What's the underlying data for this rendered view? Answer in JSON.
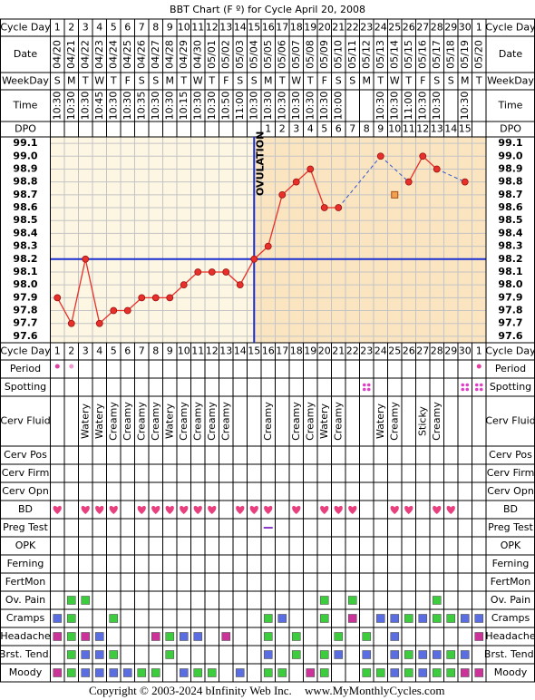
{
  "title": "BBT Chart (F º) for Cycle April 20, 2008",
  "labels": {
    "cycle_day": "Cycle Day",
    "date": "Date",
    "weekday": "WeekDay",
    "time": "Time",
    "dpo": "DPO"
  },
  "dates": [
    "04/20",
    "04/21",
    "04/22",
    "04/23",
    "04/24",
    "04/25",
    "04/26",
    "04/27",
    "04/28",
    "04/29",
    "04/30",
    "05/01",
    "05/02",
    "05/03",
    "05/04",
    "05/05",
    "05/06",
    "05/07",
    "05/08",
    "05/09",
    "05/10",
    "05/11",
    "05/12",
    "05/13",
    "05/14",
    "05/15",
    "05/16",
    "05/17",
    "05/18",
    "05/19",
    "05/20"
  ],
  "weekdays": [
    "S",
    "M",
    "T",
    "W",
    "T",
    "F",
    "S",
    "S",
    "M",
    "T",
    "W",
    "T",
    "F",
    "S",
    "S",
    "M",
    "T",
    "W",
    "T",
    "F",
    "S",
    "S",
    "M",
    "T",
    "W",
    "T",
    "F",
    "S",
    "S",
    "M",
    "T"
  ],
  "times": [
    "10:30",
    "10:30",
    "10:30",
    "10:45",
    "10:30",
    "10:30",
    "10:35",
    "10:30",
    "10:30",
    "10:15",
    "10:30",
    "10:30",
    "10:50",
    "11:00",
    "10:30",
    "10:30",
    "10:30",
    "10:30",
    "10:30",
    "10:30",
    "10:00",
    null,
    null,
    "10:30",
    "10:30",
    "11:00",
    "10:30",
    "10:30",
    null,
    "10:30",
    null
  ],
  "dpo": [
    null,
    null,
    null,
    null,
    null,
    null,
    null,
    null,
    null,
    null,
    null,
    null,
    null,
    null,
    null,
    1,
    2,
    3,
    4,
    5,
    6,
    7,
    8,
    9,
    10,
    11,
    12,
    13,
    14,
    15,
    null
  ],
  "chart_data": {
    "type": "line",
    "categories": [
      1,
      2,
      3,
      4,
      5,
      6,
      7,
      8,
      9,
      10,
      11,
      12,
      13,
      14,
      15,
      16,
      17,
      18,
      19,
      20,
      21,
      22,
      23,
      24,
      25,
      26,
      27,
      28,
      29,
      30,
      1
    ],
    "values": [
      97.9,
      97.7,
      98.2,
      97.7,
      97.8,
      97.8,
      97.9,
      97.9,
      97.9,
      98.0,
      98.1,
      98.1,
      98.1,
      98.0,
      98.2,
      98.3,
      98.7,
      98.8,
      98.9,
      98.6,
      98.6,
      null,
      null,
      99.0,
      null,
      98.8,
      99.0,
      98.9,
      null,
      98.8,
      null
    ],
    "color": "#e8302a",
    "gap_color": "#3355cc",
    "discarded": [
      null,
      null,
      null,
      null,
      null,
      null,
      null,
      null,
      null,
      null,
      null,
      null,
      null,
      null,
      null,
      null,
      null,
      null,
      null,
      null,
      null,
      null,
      null,
      null,
      98.7,
      null,
      null,
      null,
      null,
      null,
      null
    ],
    "discarded_color": "#f4a050",
    "ylim": [
      97.55,
      99.15
    ],
    "yticks": [
      97.6,
      97.7,
      97.8,
      97.9,
      {
        "value": 98,
        "label": "98.0"
      },
      98.1,
      98.2,
      98.3,
      98.4,
      98.5,
      98.6,
      98.7,
      98.8,
      98.9,
      {
        "value": 99,
        "label": "99.0"
      },
      99.1
    ],
    "grid": true,
    "coverline": 98.2,
    "coverline_color": "#1a2fd0",
    "ovulation_day": 15,
    "ovulation_label": "OVULATION",
    "pre_color": "#fdf6e3",
    "post_color": "#fae5c0"
  },
  "records": [
    {
      "label": "Period",
      "shape": "dot",
      "marks": [
        "#e23fa0",
        "#f09ad0",
        null,
        null,
        null,
        null,
        null,
        null,
        null,
        null,
        null,
        null,
        null,
        null,
        null,
        null,
        null,
        null,
        null,
        null,
        null,
        null,
        null,
        null,
        null,
        null,
        null,
        null,
        null,
        null,
        "#e23fa0"
      ]
    },
    {
      "label": "Spotting",
      "shape": "dots",
      "marks": [
        null,
        null,
        null,
        null,
        null,
        null,
        null,
        null,
        null,
        null,
        null,
        null,
        null,
        null,
        null,
        null,
        null,
        null,
        null,
        null,
        null,
        null,
        "#e040c8",
        null,
        null,
        null,
        null,
        null,
        null,
        "#e040c8",
        "#e040c8"
      ]
    },
    {
      "label": "Cerv Fluid",
      "entries": [
        null,
        null,
        "Watery",
        "Watery",
        "Creamy",
        "Creamy",
        "Creamy",
        "Creamy",
        "Watery",
        "Creamy",
        "Creamy",
        "Creamy",
        "Creamy",
        null,
        null,
        "Creamy",
        null,
        "Creamy",
        "Creamy",
        "Watery",
        "Creamy",
        null,
        null,
        "Watery",
        "Creamy",
        null,
        "Sticky",
        "Creamy",
        null,
        null,
        null
      ]
    },
    {
      "label": "Cerv Pos"
    },
    {
      "label": "Cerv Firm"
    },
    {
      "label": "Cerv Opn"
    },
    {
      "label": "BD",
      "shape": "heart",
      "marks": [
        "#e8407f",
        null,
        "#e8407f",
        "#e8407f",
        "#e8407f",
        null,
        "#e8407f",
        "#e8407f",
        "#e8407f",
        "#e8407f",
        "#e8407f",
        "#e8407f",
        null,
        "#e8407f",
        "#e8407f",
        "#e8407f",
        null,
        "#e8407f",
        null,
        "#e8407f",
        "#e8407f",
        "#e8407f",
        null,
        null,
        "#e8407f",
        "#e8407f",
        null,
        "#e8407f",
        "#e8407f",
        null,
        null
      ]
    },
    {
      "label": "Preg Test",
      "shape": "dash",
      "marks": [
        null,
        null,
        null,
        null,
        null,
        null,
        null,
        null,
        null,
        null,
        null,
        null,
        null,
        null,
        null,
        "#8a3cc8",
        null,
        null,
        null,
        null,
        null,
        null,
        null,
        null,
        null,
        null,
        null,
        null,
        null,
        null,
        null
      ]
    },
    {
      "label": "OPK"
    },
    {
      "label": "Ferning"
    },
    {
      "label": "FertMon"
    },
    {
      "label": "Ov. Pain",
      "shape": "square",
      "marks": [
        null,
        "#3dcc3d",
        "#3dcc3d",
        null,
        null,
        null,
        null,
        null,
        null,
        null,
        null,
        null,
        null,
        null,
        null,
        null,
        null,
        null,
        null,
        "#3dcc3d",
        null,
        "#3dcc3d",
        null,
        null,
        null,
        null,
        null,
        "#3dcc3d",
        null,
        null,
        null
      ]
    },
    {
      "label": "Cramps",
      "shape": "square",
      "marks": [
        "#5b6ee1",
        "#3dcc3d",
        null,
        null,
        "#3dcc3d",
        null,
        null,
        null,
        null,
        null,
        null,
        null,
        null,
        null,
        null,
        "#3dcc3d",
        "#5b6ee1",
        null,
        null,
        "#3dcc3d",
        null,
        "#cc3399",
        null,
        "#5b6ee1",
        "#5b6ee1",
        "#3dcc3d",
        "#5b6ee1",
        "#3dcc3d",
        "#3dcc3d",
        "#5b6ee1",
        "#5b6ee1"
      ]
    },
    {
      "label": "Headache",
      "shape": "square",
      "marks": [
        "#cc3399",
        "#3dcc3d",
        "#cc3399",
        "#5b6ee1",
        null,
        null,
        null,
        "#cc3399",
        "#3dcc3d",
        "#5b6ee1",
        "#5b6ee1",
        null,
        "#cc3399",
        null,
        null,
        "#3dcc3d",
        null,
        "#3dcc3d",
        null,
        null,
        "#3dcc3d",
        null,
        "#3dcc3d",
        null,
        "#5b6ee1",
        null,
        null,
        null,
        null,
        null,
        "#cc3399"
      ]
    },
    {
      "label": "Brst. Tend.",
      "shape": "square",
      "marks": [
        null,
        "#3dcc3d",
        "#5b6ee1",
        "#5b6ee1",
        "#3dcc3d",
        null,
        null,
        null,
        "#3dcc3d",
        null,
        null,
        null,
        null,
        null,
        null,
        "#5b6ee1",
        null,
        "#3dcc3d",
        null,
        "#3dcc3d",
        "#5b6ee1",
        null,
        "#5b6ee1",
        null,
        "#5b6ee1",
        "#3dcc3d",
        "#5b6ee1",
        "#5b6ee1",
        "#3dcc3d",
        "#5b6ee1",
        null
      ]
    },
    {
      "label": "Moody",
      "shape": "square",
      "marks": [
        "#cc3399",
        "#3dcc3d",
        "#5b6ee1",
        "#5b6ee1",
        "#5b6ee1",
        "#5b6ee1",
        "#3dcc3d",
        "#3dcc3d",
        null,
        "#5b6ee1",
        "#3dcc3d",
        "#3dcc3d",
        null,
        "#5b6ee1",
        null,
        "#3dcc3d",
        "#3dcc3d",
        null,
        "#cc3399",
        "#3dcc3d",
        null,
        null,
        "#3dcc3d",
        "#3dcc3d",
        "#5b6ee1",
        "#3dcc3d",
        "#5b6ee1",
        "#3dcc3d",
        "#3dcc3d",
        "#cc3399",
        "#cc3399"
      ]
    }
  ],
  "footer": {
    "copyright": "Copyright © 2003-2024 bInfinity Web Inc.",
    "site": "www.MyMonthlyCycles.com"
  }
}
